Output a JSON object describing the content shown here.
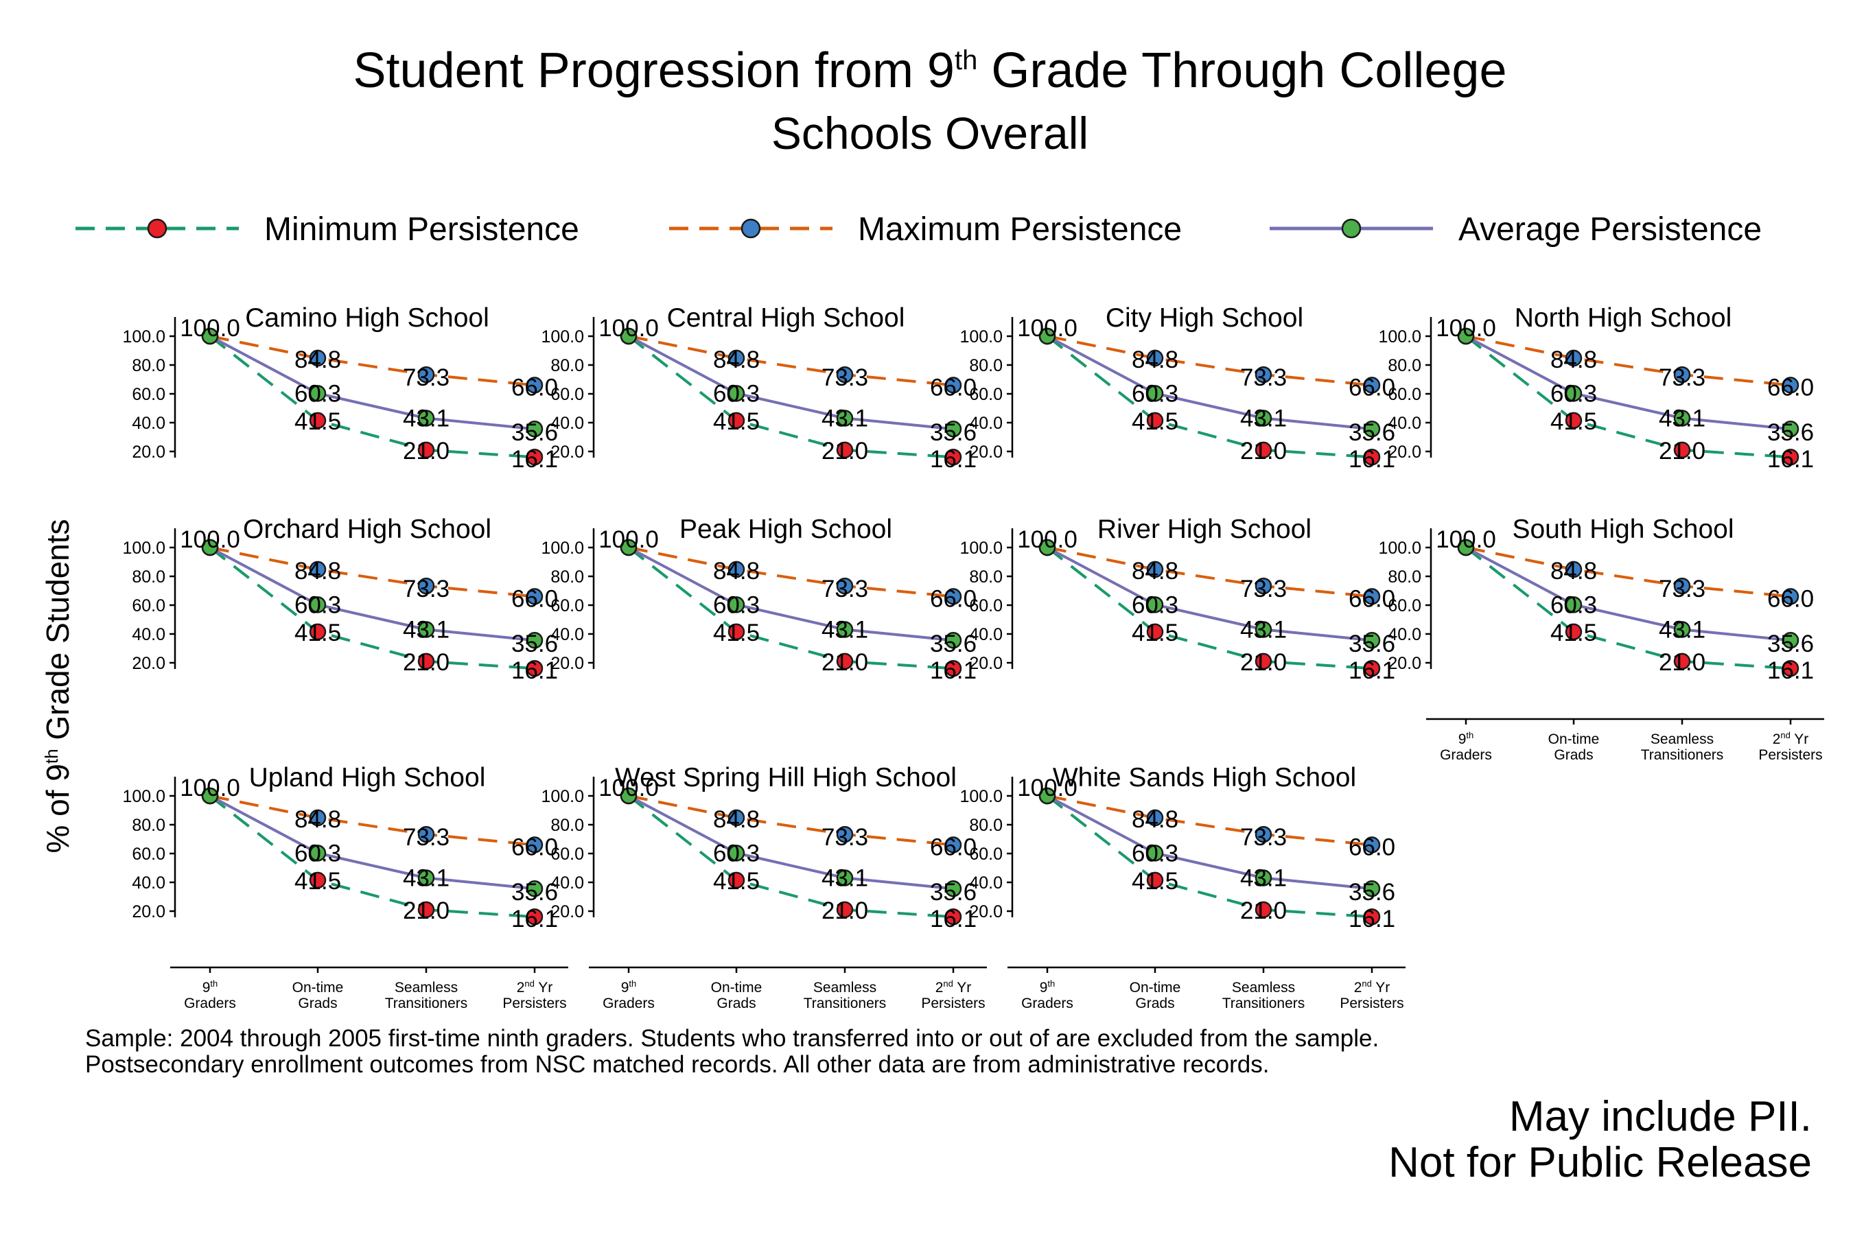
{
  "title": {
    "prefix": "Student Progression from 9",
    "superscript": "th",
    "suffix": " Grade Through College",
    "subtitle": "Schools Overall"
  },
  "legend": [
    {
      "label": "Minimum Persistence",
      "series": "min"
    },
    {
      "label": "Maximum Persistence",
      "series": "max"
    },
    {
      "label": "Average Persistence",
      "series": "avg"
    }
  ],
  "y_axis_label": {
    "prefix": "% of 9",
    "superscript": "th",
    "suffix": " Grade Students"
  },
  "x_tick_labels": [
    {
      "line1": "9",
      "sup": "th",
      "line1b": "",
      "line2": "Graders"
    },
    {
      "line1": "On-time",
      "sup": "",
      "line1b": "",
      "line2": "Grads"
    },
    {
      "line1": "Seamless",
      "sup": "",
      "line1b": "",
      "line2": "Transitioners"
    },
    {
      "line1": "2",
      "sup": "nd",
      "line1b": " Yr",
      "line2": "Persisters"
    }
  ],
  "footnote": [
    "Sample: 2004 through 2005  first-time ninth graders. Students who transferred into or out of  are excluded from the sample.",
    "Postsecondary enrollment outcomes from NSC matched records. All other data are from  administrative records."
  ],
  "warning": [
    "May include PII.",
    "Not for Public Release"
  ],
  "colors": {
    "min_line": "#1a9a6c",
    "min_marker": "#e8202a",
    "max_line": "#d95f0e",
    "max_marker": "#3d7fc4",
    "avg_line": "#7570b3",
    "avg_marker": "#4daf4a",
    "warning": "#e8202a"
  },
  "chart_data": {
    "type": "line",
    "categories": [
      "9th Graders",
      "On-time Grads",
      "Seamless Transitioners",
      "2nd Yr Persisters"
    ],
    "ylim": [
      0,
      100
    ],
    "y_ticks": [
      "100.0",
      "80.0",
      "60.0",
      "40.0",
      "20.0"
    ],
    "series": [
      {
        "name": "Minimum Persistence",
        "key": "min",
        "values": [
          100.0,
          41.5,
          21.0,
          16.1
        ],
        "labels": [
          "",
          "41.5",
          "21.0",
          "16.1"
        ]
      },
      {
        "name": "Maximum Persistence",
        "key": "max",
        "values": [
          100.0,
          84.8,
          73.3,
          66.0
        ],
        "labels": [
          "",
          "84.8",
          "73.3",
          "66.0"
        ]
      },
      {
        "name": "Average Persistence",
        "key": "avg",
        "values": [
          100.0,
          60.3,
          43.1,
          35.6
        ],
        "labels": [
          "100.0",
          "60.3",
          "43.1",
          "35.6"
        ]
      }
    ],
    "panels": [
      {
        "title": "Camino High School",
        "show_x_ticks": false
      },
      {
        "title": "Central High School",
        "show_x_ticks": false
      },
      {
        "title": "City High School",
        "show_x_ticks": false
      },
      {
        "title": "North High School",
        "show_x_ticks": false
      },
      {
        "title": "Orchard High School",
        "show_x_ticks": false
      },
      {
        "title": "Peak High School",
        "show_x_ticks": false
      },
      {
        "title": "River High School",
        "show_x_ticks": false
      },
      {
        "title": "South High School",
        "show_x_ticks": true
      },
      {
        "title": "Upland High School",
        "show_x_ticks": true
      },
      {
        "title": "West Spring Hill High School",
        "show_x_ticks": true
      },
      {
        "title": "White Sands High School",
        "show_x_ticks": true
      }
    ]
  }
}
